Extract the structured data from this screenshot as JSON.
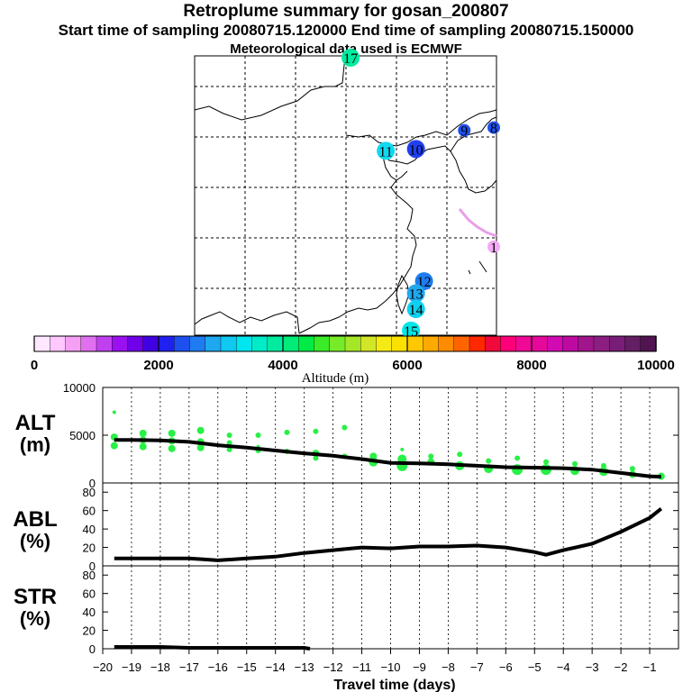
{
  "header": {
    "title": "Retroplume summary for gosan_200807",
    "sampling": "Start time of sampling 20080715.120000     End time of sampling 20080715.150000",
    "met": "Meteorological data used is ECMWF"
  },
  "colors": {
    "altitude_scale": [
      "#ffe8ff",
      "#ffc8ff",
      "#f5a0f5",
      "#e070f0",
      "#c040f0",
      "#9a10f0",
      "#7000e8",
      "#4000e0",
      "#2020f0",
      "#1e50f0",
      "#1e7cf0",
      "#1ea8f0",
      "#10c8f0",
      "#00e6f0",
      "#00ebc8",
      "#00eba0",
      "#00eb78",
      "#00eb46",
      "#3ceb28",
      "#78eb28",
      "#a5e628",
      "#d2e628",
      "#f5eb14",
      "#fae100",
      "#ffc800",
      "#ffaa00",
      "#ff8c00",
      "#ff6400",
      "#ff2800",
      "#f00a3c",
      "#ff0078",
      "#f00896",
      "#e6089b",
      "#d20ab4",
      "#be0aa0",
      "#a0148c",
      "#8c1e82",
      "#781e78",
      "#641e64",
      "#501450"
    ],
    "abl_line": "#000000",
    "dots": "#28f046"
  },
  "map": {
    "labels": [
      {
        "text": "1",
        "lon": 131.2,
        "lat": 29.5,
        "color": "#f4aaf4"
      },
      {
        "text": "8",
        "lon": 130.8,
        "lat": 42.3,
        "color": "#1e50f0"
      },
      {
        "text": "9",
        "lon": 126.8,
        "lat": 42.0,
        "color": "#1e50f0"
      },
      {
        "text": "10",
        "lon": 122.0,
        "lat": 40.0,
        "color": "#2040f0"
      },
      {
        "text": "11",
        "lon": 119.0,
        "lat": 39.8,
        "color": "#10d8f0"
      },
      {
        "text": "12",
        "lon": 122.8,
        "lat": 25.8,
        "color": "#1e7cf0"
      },
      {
        "text": "13",
        "lon": 122.0,
        "lat": 24.5,
        "color": "#1ea8f0"
      },
      {
        "text": "14",
        "lon": 122.0,
        "lat": 22.8,
        "color": "#10d0f0"
      },
      {
        "text": "15",
        "lon": 121.5,
        "lat": 20.5,
        "color": "#00e6e6"
      },
      {
        "text": "17",
        "lon": 115.5,
        "lat": 51.7,
        "color": "#00eba0"
      }
    ]
  },
  "colorbar": {
    "tick_labels": [
      "0",
      "2000",
      "4000",
      "6000",
      "8000",
      "10000"
    ],
    "label": "Altitude (m)"
  },
  "chart_data": [
    {
      "type": "line",
      "panel": "ALT",
      "ylabel": "ALT\n(m)",
      "ylabel_line1": "ALT",
      "ylabel_line2": "(m)",
      "x": [
        -19.6,
        -19,
        -18,
        -17,
        -16,
        -15,
        -14,
        -13,
        -12,
        -11,
        -10,
        -9,
        -8,
        -7,
        -6,
        -5,
        -4,
        -3,
        -2,
        -1,
        -0.6
      ],
      "values": [
        4500,
        4500,
        4450,
        4300,
        3950,
        3700,
        3400,
        3100,
        2850,
        2500,
        2100,
        2050,
        1950,
        1800,
        1650,
        1600,
        1550,
        1400,
        1050,
        700,
        650
      ],
      "scatter_x": [
        -19.6,
        -19.6,
        -19.6,
        -18.6,
        -18.6,
        -18.6,
        -17.6,
        -17.6,
        -17.6,
        -16.6,
        -16.6,
        -16.6,
        -15.6,
        -15.6,
        -15.6,
        -14.6,
        -14.6,
        -14.6,
        -13.6,
        -13.6,
        -12.6,
        -12.6,
        -12.6,
        -11.6,
        -11.6,
        -10.6,
        -10.6,
        -9.6,
        -9.6,
        -9.6,
        -8.6,
        -8.6,
        -7.6,
        -7.6,
        -6.6,
        -6.6,
        -5.6,
        -5.6,
        -4.6,
        -4.6,
        -3.6,
        -3.6,
        -2.6,
        -2.6,
        -1.6,
        -1.6,
        -0.6,
        -0.6
      ],
      "scatter_y": [
        3900,
        4800,
        7400,
        3800,
        4500,
        5200,
        3600,
        4400,
        5200,
        3700,
        4300,
        5500,
        3500,
        4200,
        5000,
        3400,
        3800,
        5000,
        3300,
        5300,
        3100,
        2600,
        5400,
        2800,
        5800,
        2200,
        2800,
        1800,
        2500,
        3500,
        2200,
        2800,
        1800,
        3000,
        1500,
        2300,
        1400,
        2600,
        1400,
        2200,
        1300,
        2000,
        1200,
        1800,
        900,
        1500,
        700,
        800
      ],
      "scatter_size": [
        4,
        4,
        2,
        4,
        4,
        4,
        4,
        4,
        4,
        4,
        4,
        4,
        3,
        3,
        3,
        3,
        2,
        3,
        3,
        3,
        4,
        3,
        3,
        3,
        3,
        5,
        4,
        6,
        5,
        2,
        4,
        3,
        5,
        3,
        5,
        3,
        6,
        3,
        6,
        3,
        5,
        3,
        5,
        3,
        4,
        3,
        4,
        3
      ],
      "ylim": [
        0,
        10000
      ],
      "yticks": [
        0,
        5000,
        10000
      ],
      "xlim": [
        -20,
        0
      ]
    },
    {
      "type": "line",
      "panel": "ABL",
      "ylabel_line1": "ABL",
      "ylabel_line2": "(%)",
      "x": [
        -19.6,
        -19,
        -18,
        -17,
        -16.5,
        -16,
        -15,
        -14,
        -13,
        -12,
        -11,
        -10,
        -9,
        -8,
        -7,
        -6,
        -5,
        -4.6,
        -4,
        -3,
        -2,
        -1,
        -0.6
      ],
      "values": [
        8,
        8,
        8,
        8,
        7,
        6,
        8,
        10,
        14,
        17,
        20,
        19,
        21,
        21,
        22,
        20,
        15,
        12,
        17,
        24,
        37,
        52,
        62
      ],
      "ylim": [
        0,
        90
      ],
      "yticks": [
        0,
        20,
        40,
        60,
        80
      ],
      "xlim": [
        -20,
        0
      ]
    },
    {
      "type": "line",
      "panel": "STR",
      "ylabel_line1": "STR",
      "ylabel_line2": "(%)",
      "x": [
        -19.6,
        -19,
        -18,
        -17,
        -16,
        -15,
        -14,
        -13,
        -12.8
      ],
      "values": [
        2,
        2,
        2,
        1,
        1,
        1,
        1,
        1,
        0
      ],
      "ylim": [
        0,
        90
      ],
      "yticks": [
        0,
        20,
        40,
        60,
        80
      ],
      "xlim": [
        -20,
        0
      ],
      "xticks": [
        -20,
        -19,
        -18,
        -17,
        -16,
        -15,
        -14,
        -13,
        -12,
        -11,
        -10,
        -9,
        -8,
        -7,
        -6,
        -5,
        -4,
        -3,
        -2,
        -1
      ],
      "xlabel": "Travel time (days)"
    }
  ]
}
